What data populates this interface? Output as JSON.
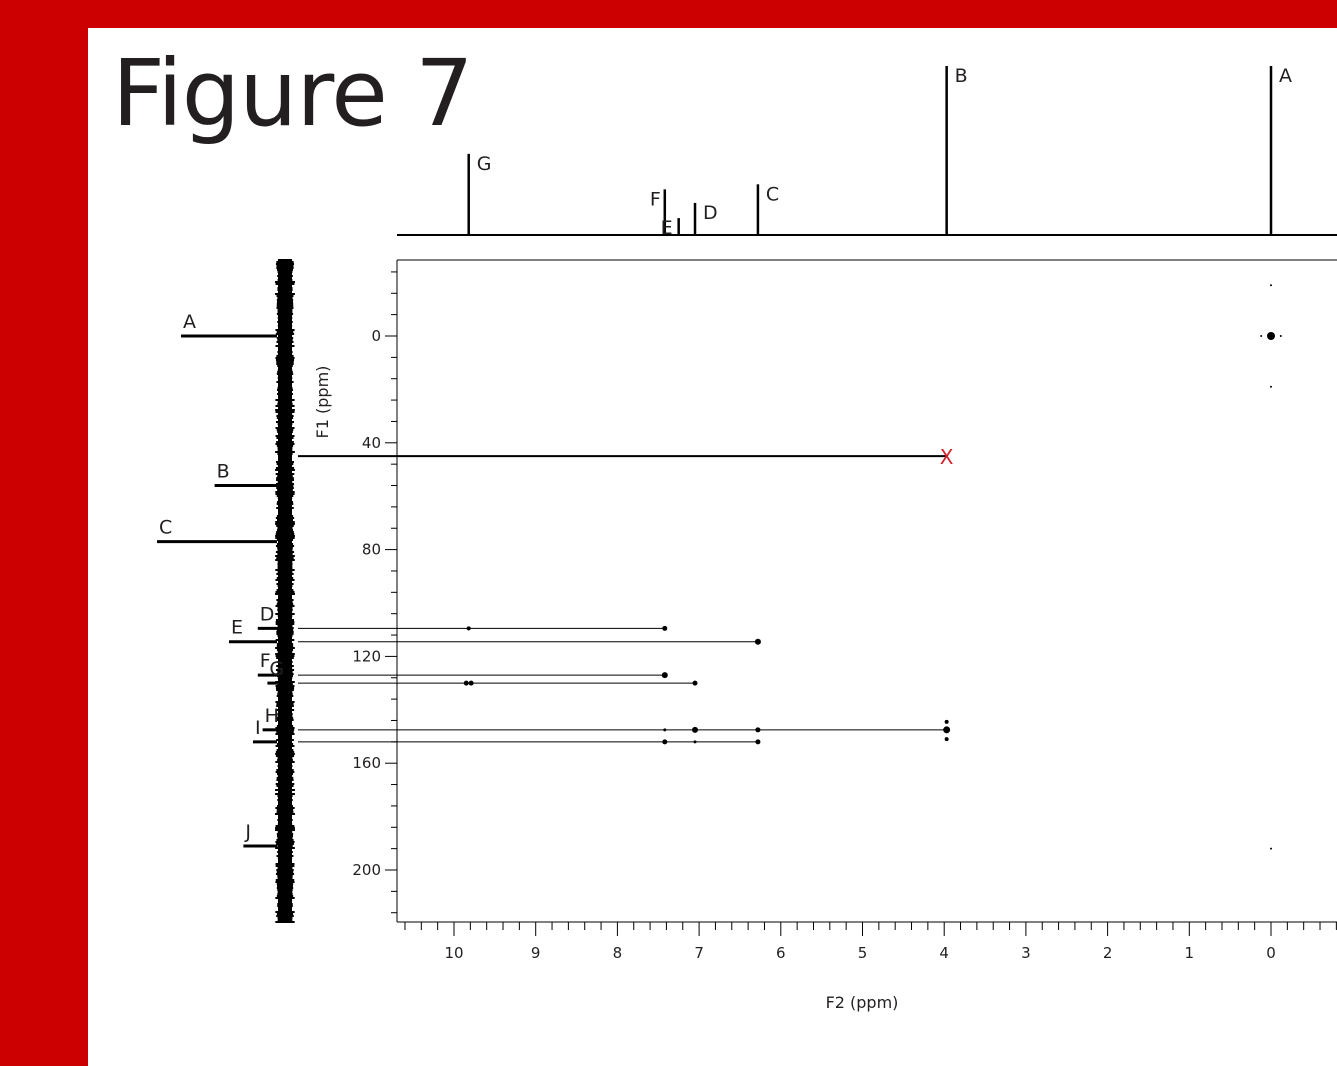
{
  "figure_title": "Figure 7",
  "chart_data": {
    "type": "scatter",
    "subtype": "2D NMR correlation spectrum (HMBC-style)",
    "xlabel": "F2 (ppm)",
    "ylabel": "F1 (ppm)",
    "xlim": [
      10.7,
      -0.8
    ],
    "ylim": [
      -28,
      220
    ],
    "x_axis_reversed": true,
    "y_axis_inverted": true,
    "x_ticks": [
      10,
      9,
      8,
      7,
      6,
      5,
      4,
      3,
      2,
      1,
      0
    ],
    "y_ticks": [
      0,
      40,
      80,
      120,
      160,
      200
    ],
    "grid": false,
    "marker_color": "#000000",
    "annotation_color": "#d2232a",
    "top_projection_peaks": [
      {
        "label": "G",
        "ppm": 9.82,
        "height": 0.48
      },
      {
        "label": "F",
        "ppm": 7.42,
        "height": 0.27
      },
      {
        "label": "E",
        "ppm": 7.25,
        "height": 0.1
      },
      {
        "label": "D",
        "ppm": 7.05,
        "height": 0.19
      },
      {
        "label": "C",
        "ppm": 6.28,
        "height": 0.3
      },
      {
        "label": "B",
        "ppm": 3.97,
        "height": 1.0
      },
      {
        "label": "A",
        "ppm": 0.0,
        "height": 1.0
      }
    ],
    "left_projection_peaks": [
      {
        "label": "A",
        "ppm": 0.0,
        "strength": 1.0
      },
      {
        "label": "B",
        "ppm": 56.0,
        "strength": 0.65
      },
      {
        "label": "C",
        "ppm": 77.0,
        "strength": 1.25
      },
      {
        "label": "D",
        "ppm": 109.5,
        "strength": 0.2
      },
      {
        "label": "E",
        "ppm": 114.5,
        "strength": 0.5
      },
      {
        "label": "F",
        "ppm": 127.0,
        "strength": 0.2
      },
      {
        "label": "G",
        "ppm": 130.0,
        "strength": 0.1
      },
      {
        "label": "H",
        "ppm": 147.5,
        "strength": 0.15
      },
      {
        "label": "I",
        "ppm": 152.0,
        "strength": 0.25
      },
      {
        "label": "J",
        "ppm": 191.0,
        "strength": 0.35
      }
    ],
    "correlation_lines": [
      {
        "f1": 45.0,
        "from_ppm": 3.97,
        "marker": "X"
      },
      {
        "f1": 109.5,
        "from_ppm": 7.42
      },
      {
        "f1": 114.5,
        "from_ppm": 6.28
      },
      {
        "f1": 127.0,
        "from_ppm": 7.42
      },
      {
        "f1": 130.0,
        "from_ppm": 7.05
      },
      {
        "f1": 147.5,
        "from_ppm": 3.97
      },
      {
        "f1": 152.0,
        "from_ppm": 6.28
      }
    ],
    "cross_peaks": [
      {
        "x": 0.0,
        "y": -19,
        "size": 1
      },
      {
        "x": 0.0,
        "y": 0,
        "size": 4
      },
      {
        "x": 0.12,
        "y": 0,
        "size": 1
      },
      {
        "x": -0.12,
        "y": 0,
        "size": 1
      },
      {
        "x": 0.0,
        "y": 19,
        "size": 1
      },
      {
        "x": 0.0,
        "y": 192,
        "size": 1
      },
      {
        "x": 9.82,
        "y": 109.5,
        "size": 2
      },
      {
        "x": 7.42,
        "y": 109.5,
        "size": 2.5
      },
      {
        "x": 6.28,
        "y": 114.5,
        "size": 3
      },
      {
        "x": 7.42,
        "y": 127.0,
        "size": 3
      },
      {
        "x": 9.85,
        "y": 130.0,
        "size": 2.5
      },
      {
        "x": 9.79,
        "y": 130.0,
        "size": 2.5
      },
      {
        "x": 7.05,
        "y": 130.0,
        "size": 2.5
      },
      {
        "x": 7.42,
        "y": 147.5,
        "size": 1.5
      },
      {
        "x": 7.05,
        "y": 147.5,
        "size": 3
      },
      {
        "x": 6.28,
        "y": 147.5,
        "size": 2.5
      },
      {
        "x": 3.97,
        "y": 144.5,
        "size": 2
      },
      {
        "x": 3.97,
        "y": 147.5,
        "size": 3.5
      },
      {
        "x": 3.97,
        "y": 151.0,
        "size": 2
      },
      {
        "x": 7.42,
        "y": 152.0,
        "size": 2.5
      },
      {
        "x": 7.05,
        "y": 152.0,
        "size": 1.5
      },
      {
        "x": 6.28,
        "y": 152.0,
        "size": 2.5
      }
    ]
  }
}
